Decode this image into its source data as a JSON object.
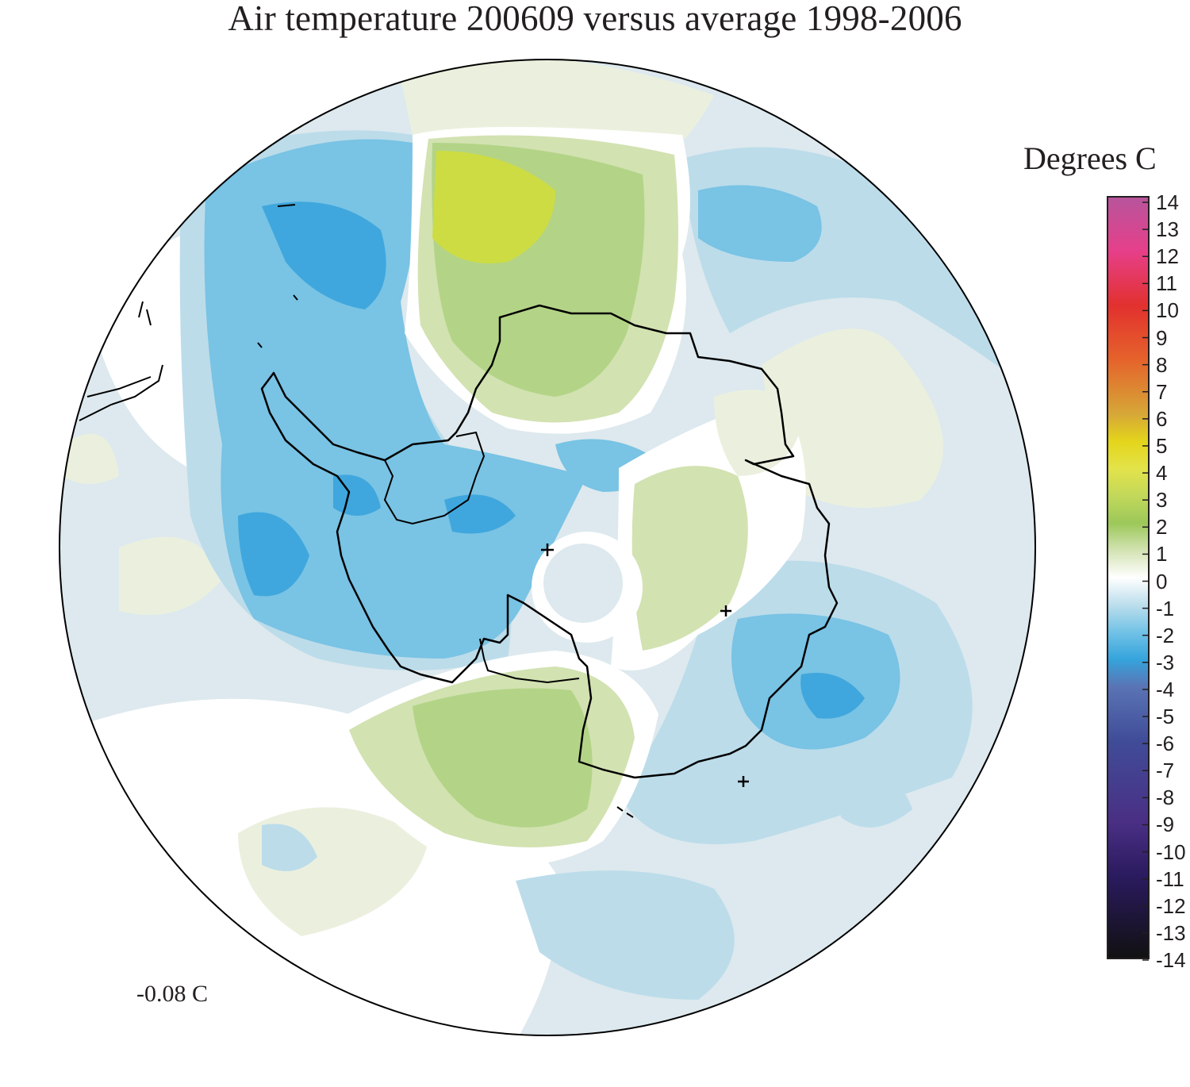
{
  "title": "Air temperature 200609 versus average 1998-2006",
  "legend": {
    "title": "Degrees C",
    "ticks": [
      "14",
      "13",
      "12",
      "11",
      "10",
      "9",
      "8",
      "7",
      "6",
      "5",
      "4",
      "3",
      "2",
      "1",
      "0",
      "-1",
      "-2",
      "-3",
      "-4",
      "-5",
      "-6",
      "-7",
      "-8",
      "-9",
      "-10",
      "-11",
      "-12",
      "-13",
      "-14"
    ],
    "colors": {
      "14": "#b7559c",
      "12": "#e63f8a",
      "10": "#e2312e",
      "8": "#e5632b",
      "6": "#d6a837",
      "5": "#e4d51b",
      "4": "#e3e34a",
      "3": "#c2d85a",
      "2": "#9cc85a",
      "1": "#d3e3b3",
      "0": "#ffffff",
      "-1": "#bcdeec",
      "-2": "#72c2e6",
      "-3": "#35a4dc",
      "-4": "#5a74b5",
      "-6": "#404c98",
      "-9": "#4a2f84",
      "-11": "#2a1a5e",
      "-14": "#111111"
    }
  },
  "global_mean_label": "-0.08 C",
  "map": {
    "projection": "south-polar-stereographic",
    "field": "air temperature anomaly",
    "colors": {
      "strong_negative": "#3fa7dd",
      "moderate_negative": "#79c3e4",
      "weak_negative": "#bcdcea",
      "faint_negative": "#dde9ee",
      "faint_positive": "#ebf0de",
      "weak_positive": "#d2e2b1",
      "moderate_positive": "#b3d487",
      "strong_positive": "#cddc43",
      "coastline": "#000000"
    }
  }
}
